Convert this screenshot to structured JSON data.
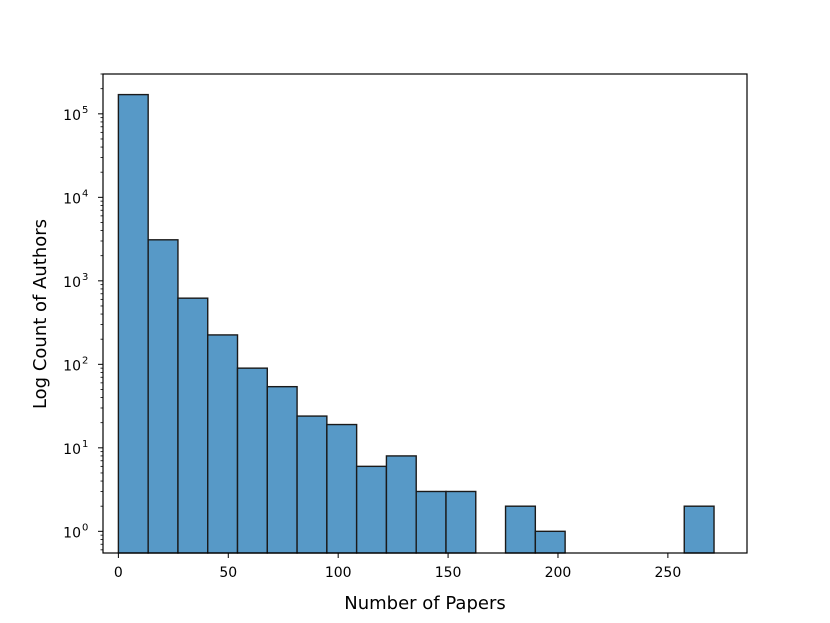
{
  "chart_data": {
    "type": "bar",
    "title": "",
    "xlabel": "Number of Papers",
    "ylabel": "Log Count of Authors",
    "yscale": "log",
    "xlim": [
      -7,
      286
    ],
    "ylim": [
      0.55,
      300000
    ],
    "bin_width": 13.55,
    "bins": [
      {
        "x0": 0,
        "x1": 13.55,
        "count": 170000
      },
      {
        "x0": 13.55,
        "x1": 27.1,
        "count": 3100
      },
      {
        "x0": 27.1,
        "x1": 40.65,
        "count": 620
      },
      {
        "x0": 40.65,
        "x1": 54.2,
        "count": 225
      },
      {
        "x0": 54.2,
        "x1": 67.75,
        "count": 90
      },
      {
        "x0": 67.75,
        "x1": 81.3,
        "count": 54
      },
      {
        "x0": 81.3,
        "x1": 94.85,
        "count": 24
      },
      {
        "x0": 94.85,
        "x1": 108.4,
        "count": 19
      },
      {
        "x0": 108.4,
        "x1": 121.95,
        "count": 6
      },
      {
        "x0": 121.95,
        "x1": 135.5,
        "count": 8
      },
      {
        "x0": 135.5,
        "x1": 149.05,
        "count": 3
      },
      {
        "x0": 149.05,
        "x1": 162.6,
        "count": 3
      },
      {
        "x0": 162.6,
        "x1": 176.15,
        "count": 0
      },
      {
        "x0": 176.15,
        "x1": 189.7,
        "count": 2
      },
      {
        "x0": 189.7,
        "x1": 203.25,
        "count": 1
      },
      {
        "x0": 203.25,
        "x1": 216.8,
        "count": 0
      },
      {
        "x0": 216.8,
        "x1": 230.35,
        "count": 0
      },
      {
        "x0": 230.35,
        "x1": 243.9,
        "count": 0
      },
      {
        "x0": 243.9,
        "x1": 257.45,
        "count": 0
      },
      {
        "x0": 257.45,
        "x1": 271,
        "count": 2
      }
    ],
    "x_ticks": [
      {
        "value": 0,
        "label": "0"
      },
      {
        "value": 50,
        "label": "50"
      },
      {
        "value": 100,
        "label": "100"
      },
      {
        "value": 150,
        "label": "150"
      },
      {
        "value": 200,
        "label": "200"
      },
      {
        "value": 250,
        "label": "250"
      }
    ],
    "y_ticks": [
      {
        "value": 1,
        "base": "10",
        "exp": "0"
      },
      {
        "value": 10,
        "base": "10",
        "exp": "1"
      },
      {
        "value": 100,
        "base": "10",
        "exp": "2"
      },
      {
        "value": 1000,
        "base": "10",
        "exp": "3"
      },
      {
        "value": 10000,
        "base": "10",
        "exp": "4"
      },
      {
        "value": 100000,
        "base": "10",
        "exp": "5"
      }
    ],
    "bar_color": "#5799c7",
    "edge_color": "#1a1a1a",
    "grid": false,
    "legend": "none"
  }
}
